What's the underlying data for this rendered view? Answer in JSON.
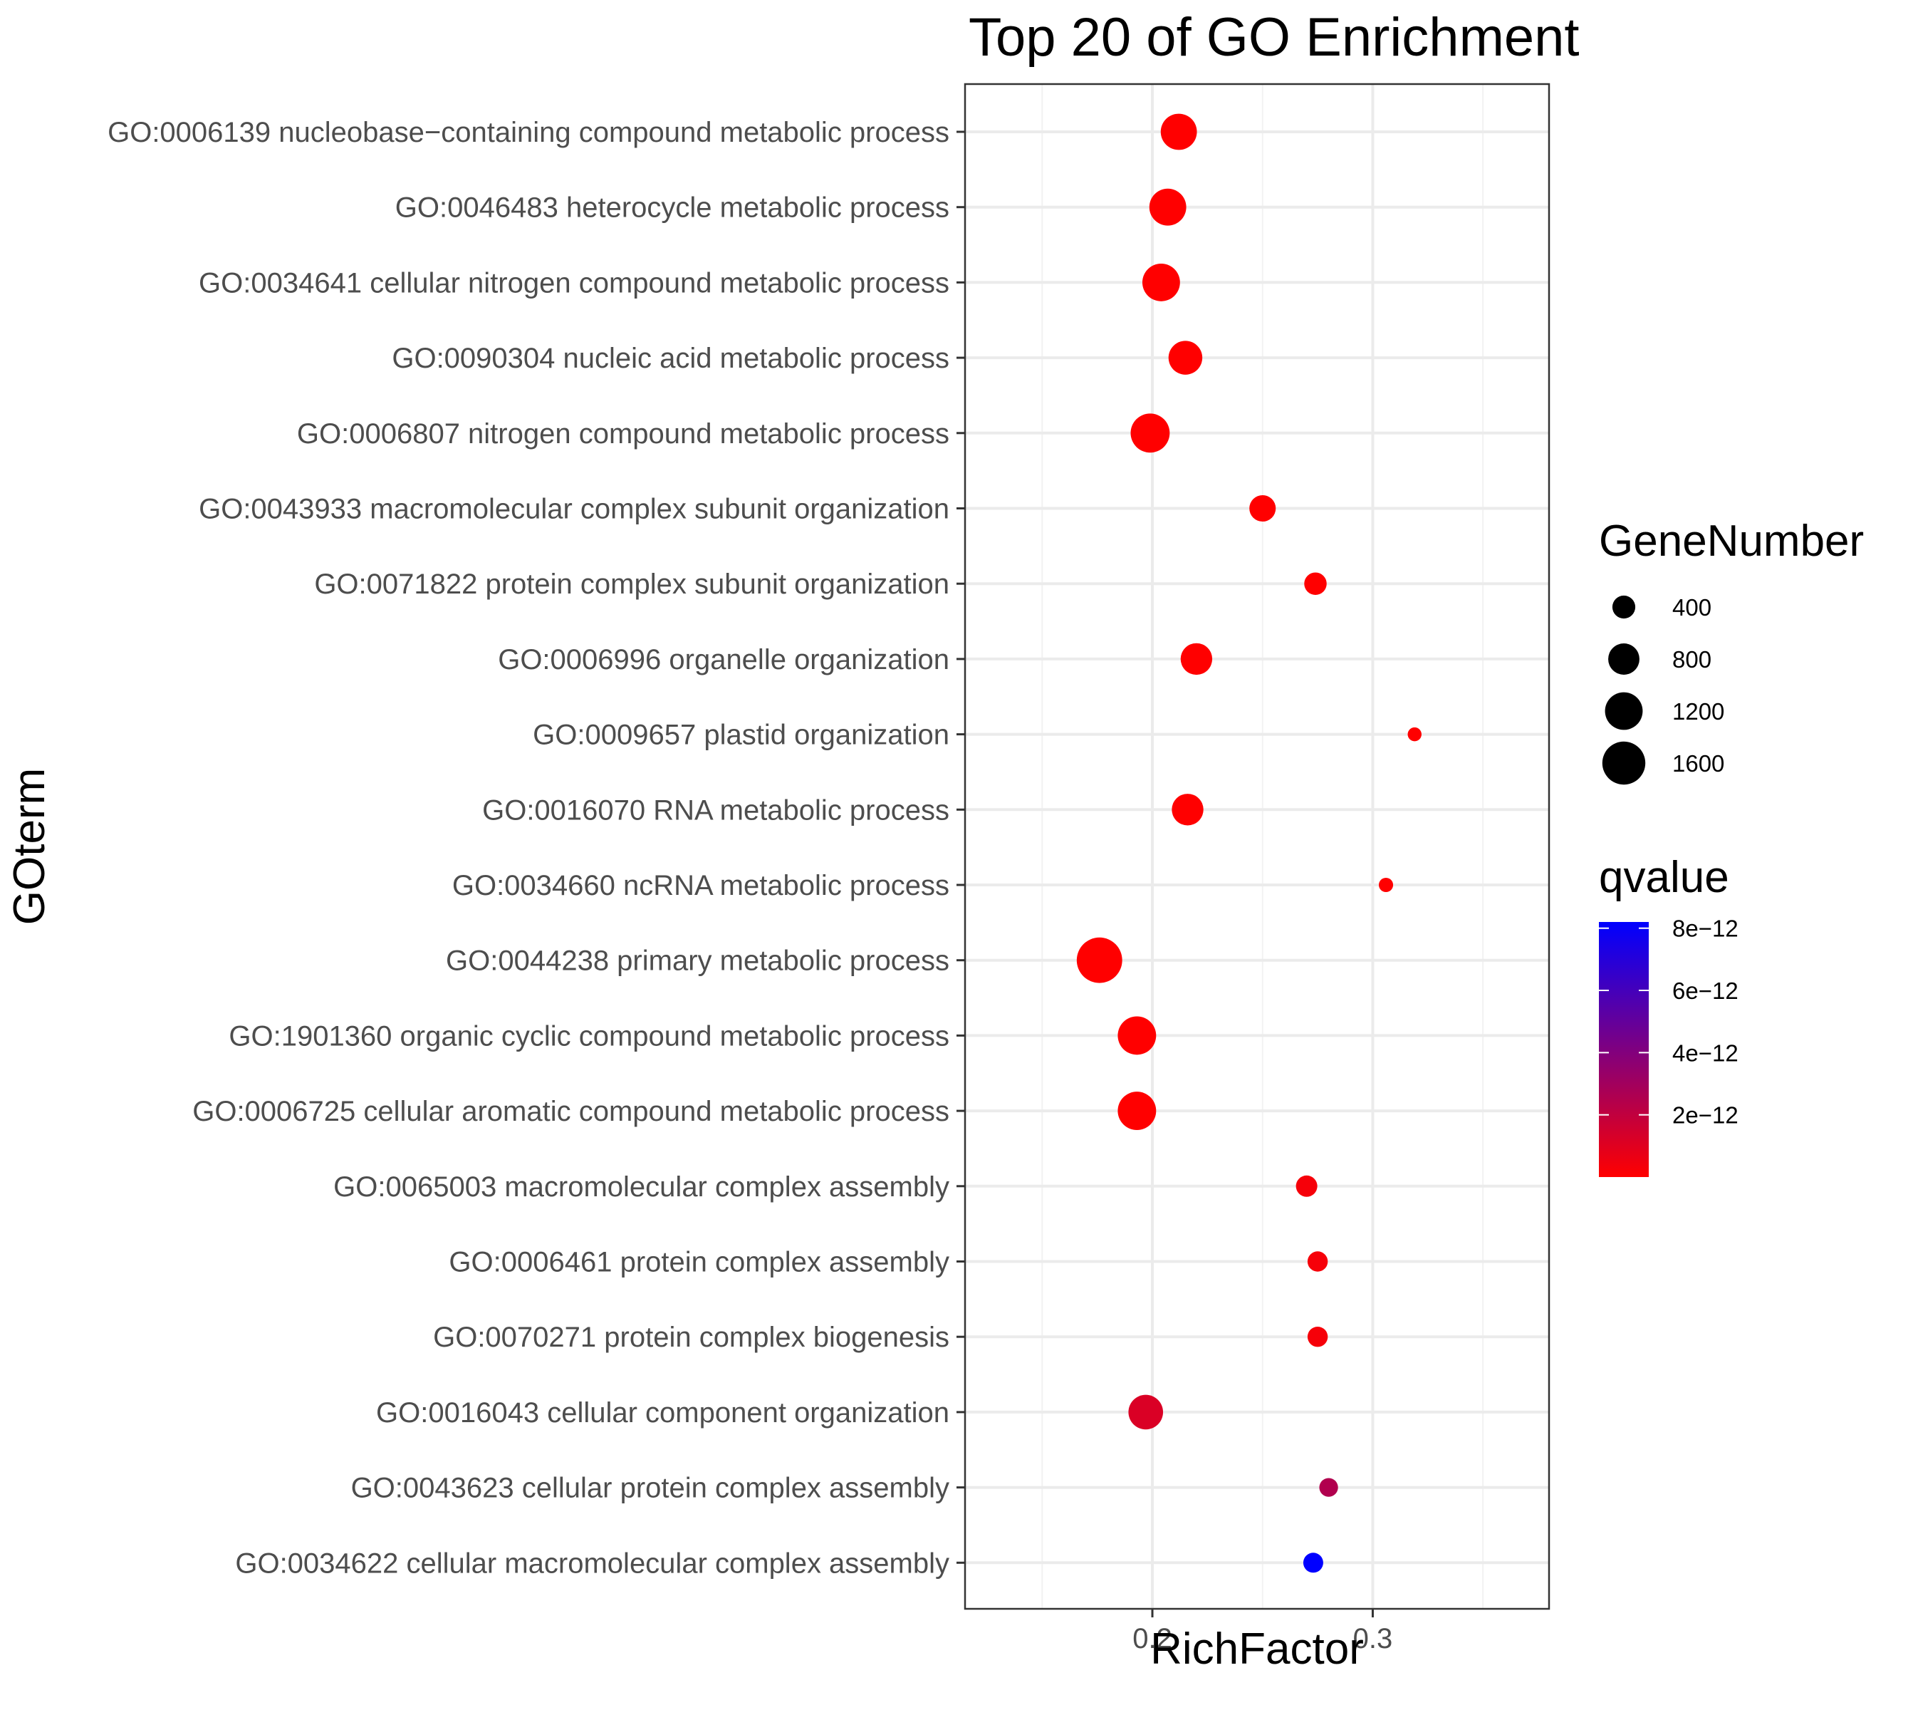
{
  "chart_data": {
    "type": "scatter",
    "title": "Top 20 of GO Enrichment",
    "xlabel": "RichFactor",
    "ylabel": "GOterm",
    "xlim": [
      0.115,
      0.38
    ],
    "xticks": [
      0.2,
      0.3
    ],
    "xtick_labels": [
      "0.2",
      "0.3"
    ],
    "grid": true,
    "terms": [
      {
        "label": "GO:0006139 nucleobase−containing compound metabolic process",
        "rich_factor": 0.212,
        "gene_number": 1100,
        "qvalue": 0.0
      },
      {
        "label": "GO:0046483 heterocycle metabolic process",
        "rich_factor": 0.207,
        "gene_number": 1150,
        "qvalue": 0.0
      },
      {
        "label": "GO:0034641 cellular nitrogen compound metabolic process",
        "rich_factor": 0.204,
        "gene_number": 1200,
        "qvalue": 0.0
      },
      {
        "label": "GO:0090304 nucleic acid metabolic process",
        "rich_factor": 0.215,
        "gene_number": 950,
        "qvalue": 0.0
      },
      {
        "label": "GO:0006807 nitrogen compound metabolic process",
        "rich_factor": 0.199,
        "gene_number": 1300,
        "qvalue": 0.0
      },
      {
        "label": "GO:0043933 macromolecular complex subunit organization",
        "rich_factor": 0.25,
        "gene_number": 550,
        "qvalue": 0.0
      },
      {
        "label": "GO:0071822 protein complex subunit organization",
        "rich_factor": 0.274,
        "gene_number": 380,
        "qvalue": 0.0
      },
      {
        "label": "GO:0006996 organelle organization",
        "rich_factor": 0.22,
        "gene_number": 820,
        "qvalue": 0.0
      },
      {
        "label": "GO:0009657 plastid organization",
        "rich_factor": 0.319,
        "gene_number": 120,
        "qvalue": 0.0
      },
      {
        "label": "GO:0016070 RNA metabolic process",
        "rich_factor": 0.216,
        "gene_number": 820,
        "qvalue": 0.0
      },
      {
        "label": "GO:0034660 ncRNA metabolic process",
        "rich_factor": 0.306,
        "gene_number": 130,
        "qvalue": 0.0
      },
      {
        "label": "GO:0044238 primary metabolic process",
        "rich_factor": 0.176,
        "gene_number": 1800,
        "qvalue": 0.0
      },
      {
        "label": "GO:1901360 organic cyclic compound metabolic process",
        "rich_factor": 0.193,
        "gene_number": 1250,
        "qvalue": 0.0
      },
      {
        "label": "GO:0006725 cellular aromatic compound metabolic process",
        "rich_factor": 0.193,
        "gene_number": 1250,
        "qvalue": 0.0
      },
      {
        "label": "GO:0065003 macromolecular complex assembly",
        "rich_factor": 0.27,
        "gene_number": 340,
        "qvalue": 3e-13
      },
      {
        "label": "GO:0006461 protein complex assembly",
        "rich_factor": 0.275,
        "gene_number": 300,
        "qvalue": 3e-13
      },
      {
        "label": "GO:0070271 protein complex biogenesis",
        "rich_factor": 0.275,
        "gene_number": 300,
        "qvalue": 3e-13
      },
      {
        "label": "GO:0016043 cellular component organization",
        "rich_factor": 0.197,
        "gene_number": 1000,
        "qvalue": 1.2e-12
      },
      {
        "label": "GO:0043623 cellular protein complex assembly",
        "rich_factor": 0.28,
        "gene_number": 250,
        "qvalue": 2.5e-12
      },
      {
        "label": "GO:0034622 cellular macromolecular complex assembly",
        "rich_factor": 0.273,
        "gene_number": 290,
        "qvalue": 8.2e-12
      }
    ],
    "legend": {
      "size_title": "GeneNumber",
      "size_breaks": [
        400,
        800,
        1200,
        1600
      ],
      "size_labels": [
        "400",
        "800",
        "1200",
        "1600"
      ],
      "color_title": "qvalue",
      "color_low": "#ff0000",
      "color_high": "#0000ff",
      "color_min": 0.0,
      "color_max": 8.2e-12,
      "color_breaks": [
        2e-12,
        4e-12,
        6e-12,
        8e-12
      ],
      "color_labels": [
        "2e−12",
        "4e−12",
        "6e−12",
        "8e−12"
      ],
      "placement": "right"
    }
  }
}
